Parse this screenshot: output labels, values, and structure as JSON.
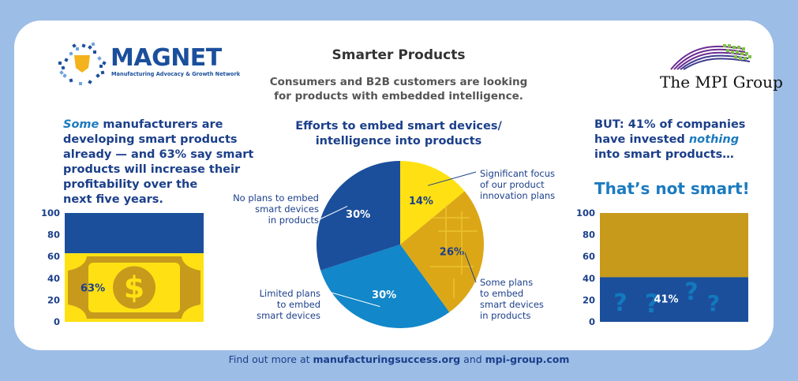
{
  "header": {
    "brand_left": "MAGNET",
    "brand_left_sub": "Manufacturing Advocacy & Growth Network",
    "brand_right": "The MPI Group",
    "title": "Smarter Products",
    "subtitle_lines": [
      "Consumers and B2B customers are looking",
      "for products with embedded intelligence."
    ]
  },
  "left_panel": {
    "heading_em": "Some",
    "heading_rest_1": " manufacturers are",
    "heading_lines": [
      "developing smart products",
      "already — and 63% say smart",
      "products will increase their",
      "profitability over the",
      "next five years."
    ]
  },
  "middle_panel": {
    "heading_lines": [
      "Efforts to embed smart devices/",
      "intelligence into products"
    ]
  },
  "right_panel": {
    "heading_line1": "BUT: 41% of companies",
    "heading_line2_pre": "have invested ",
    "heading_line2_em": "nothing",
    "heading_line3": "into smart products…",
    "tagline": "That’s not smart!"
  },
  "footer": {
    "pre": "Find out more at ",
    "link1": "manufacturingsuccess.org",
    "mid": " and ",
    "link2": "mpi-group.com"
  },
  "colors": {
    "navy": "#1b4f9c",
    "blue": "#1287c9",
    "gold": "#c79a1c",
    "yellow": "#ffe113",
    "frame": "#9cbde6"
  },
  "chart_data": [
    {
      "type": "bar",
      "title": "",
      "categories": [
        ""
      ],
      "series": [
        {
          "values": [
            63
          ]
        }
      ],
      "value_label": "63%",
      "ylim": [
        0,
        100
      ],
      "yticks": [
        0,
        20,
        40,
        60,
        80,
        100
      ],
      "fill_color": "#ffe113",
      "empty_color": "#1b4f9c",
      "icon": "dollar-coin-icon"
    },
    {
      "type": "pie",
      "title": "Efforts to embed smart devices/ intelligence into products",
      "slices": [
        {
          "label": "Significant focus of our product innovation plans",
          "value": 14,
          "value_label": "14%",
          "color": "#ffe113"
        },
        {
          "label": "Some plans to embed smart devices in products",
          "value": 26,
          "value_label": "26%",
          "color": "#dca716"
        },
        {
          "label": "Limited plans to embed smart devices",
          "value": 30,
          "value_label": "30%",
          "color": "#1287c9"
        },
        {
          "label": "No plans to embed smart devices in products",
          "value": 30,
          "value_label": "30%",
          "color": "#1b4f9c"
        }
      ]
    },
    {
      "type": "bar",
      "title": "",
      "categories": [
        ""
      ],
      "series": [
        {
          "values": [
            41
          ]
        }
      ],
      "value_label": "41%",
      "ylim": [
        0,
        100
      ],
      "yticks": [
        0,
        20,
        40,
        60,
        80,
        100
      ],
      "fill_color": "#1b4f9c",
      "empty_color": "#c79a1c",
      "icon": "question-mark-icon"
    }
  ]
}
